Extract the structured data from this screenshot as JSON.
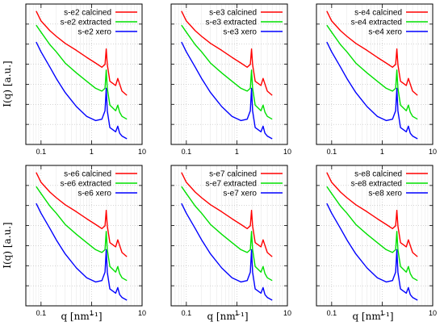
{
  "figure": {
    "y_axis_label": "I(q)  [a.u.]",
    "x_axis_label": "q  [nm⁻¹]"
  },
  "chart_data": [
    {
      "type": "line",
      "xlabel": "q  [nm⁻¹]",
      "ylabel": "I(q)  [a.u.]",
      "x_scale": "log",
      "y_scale": "log",
      "xlim": [
        0.05,
        10
      ],
      "ylim": [
        0,
        100
      ],
      "x_ticks": [
        "0.1",
        "1",
        "10"
      ],
      "y_tick_labels": [],
      "grid": true,
      "legend_position": "top-right",
      "series": [
        {
          "name": "s-e2 calcined",
          "color": "#ff0000",
          "x": [
            0.08,
            0.1,
            0.15,
            0.2,
            0.3,
            0.5,
            0.8,
            1.2,
            1.6,
            1.85,
            1.95,
            2.05,
            2.3,
            3.0,
            3.3,
            3.6,
            4.0,
            5.0
          ],
          "y": [
            95,
            88,
            81,
            77,
            72,
            67,
            62,
            58,
            55,
            57,
            68,
            57,
            45,
            42,
            47,
            43,
            38,
            35
          ]
        },
        {
          "name": "s-e2 extracted",
          "color": "#00e000",
          "x": [
            0.08,
            0.1,
            0.15,
            0.2,
            0.3,
            0.5,
            0.8,
            1.2,
            1.6,
            1.85,
            1.95,
            2.05,
            2.3,
            3.0,
            3.3,
            3.6,
            4.0,
            5.0
          ],
          "y": [
            85,
            80,
            71,
            66,
            58,
            51,
            45,
            40,
            38,
            40,
            53,
            40,
            28,
            24,
            28,
            23,
            20,
            18
          ]
        },
        {
          "name": "s-e2 xero",
          "color": "#0000ff",
          "x": [
            0.08,
            0.1,
            0.15,
            0.2,
            0.3,
            0.5,
            0.8,
            1.2,
            1.6,
            1.85,
            1.95,
            2.05,
            2.3,
            3.0,
            3.3,
            3.6,
            4.0,
            5.0
          ],
          "y": [
            73,
            66,
            55,
            47,
            37,
            27,
            20,
            17,
            18,
            24,
            40,
            24,
            12,
            9,
            13,
            8,
            6,
            4
          ]
        }
      ]
    },
    {
      "type": "line",
      "xlabel": "q  [nm⁻¹]",
      "ylabel": "I(q)  [a.u.]",
      "x_scale": "log",
      "y_scale": "log",
      "xlim": [
        0.05,
        10
      ],
      "ylim": [
        0,
        100
      ],
      "x_ticks": [
        "0.1",
        "1",
        "10"
      ],
      "y_tick_labels": [],
      "grid": true,
      "legend_position": "top-right",
      "series": [
        {
          "name": "s-e3 calcined",
          "color": "#ff0000",
          "x": [
            0.08,
            0.1,
            0.15,
            0.2,
            0.3,
            0.5,
            0.8,
            1.2,
            1.6,
            1.85,
            1.95,
            2.05,
            2.3,
            3.0,
            3.3,
            3.6,
            4.0,
            5.0
          ],
          "y": [
            95,
            88,
            81,
            77,
            72,
            67,
            62,
            58,
            55,
            57,
            68,
            57,
            45,
            42,
            47,
            43,
            38,
            35
          ]
        },
        {
          "name": "s-e3 extracted",
          "color": "#00e000",
          "x": [
            0.08,
            0.1,
            0.15,
            0.2,
            0.3,
            0.5,
            0.8,
            1.2,
            1.6,
            1.85,
            1.95,
            2.05,
            2.3,
            3.0,
            3.3,
            3.6,
            4.0,
            5.0
          ],
          "y": [
            85,
            80,
            71,
            66,
            58,
            51,
            45,
            40,
            38,
            40,
            53,
            40,
            28,
            24,
            28,
            23,
            20,
            18
          ]
        },
        {
          "name": "s-e3 xero",
          "color": "#0000ff",
          "x": [
            0.08,
            0.1,
            0.15,
            0.2,
            0.3,
            0.5,
            0.8,
            1.2,
            1.6,
            1.85,
            1.95,
            2.05,
            2.3,
            3.0,
            3.3,
            3.6,
            4.0,
            5.0
          ],
          "y": [
            73,
            66,
            55,
            47,
            37,
            27,
            20,
            17,
            18,
            24,
            40,
            24,
            12,
            9,
            13,
            8,
            6,
            4
          ]
        }
      ]
    },
    {
      "type": "line",
      "xlabel": "q  [nm⁻¹]",
      "ylabel": "I(q)  [a.u.]",
      "x_scale": "log",
      "y_scale": "log",
      "xlim": [
        0.05,
        10
      ],
      "ylim": [
        0,
        100
      ],
      "x_ticks": [
        "0.1",
        "1",
        "10"
      ],
      "y_tick_labels": [],
      "grid": true,
      "legend_position": "top-right",
      "series": [
        {
          "name": "s-e4 calcined",
          "color": "#ff0000",
          "x": [
            0.08,
            0.1,
            0.15,
            0.2,
            0.3,
            0.5,
            0.8,
            1.2,
            1.6,
            1.85,
            1.95,
            2.05,
            2.3,
            3.0,
            3.3,
            3.6,
            4.0,
            5.0
          ],
          "y": [
            95,
            88,
            81,
            77,
            72,
            67,
            62,
            58,
            55,
            57,
            68,
            57,
            45,
            42,
            47,
            43,
            38,
            35
          ]
        },
        {
          "name": "s-e4 extracted",
          "color": "#00e000",
          "x": [
            0.08,
            0.1,
            0.15,
            0.2,
            0.3,
            0.5,
            0.8,
            1.2,
            1.6,
            1.85,
            1.95,
            2.05,
            2.3,
            3.0,
            3.3,
            3.6,
            4.0,
            5.0
          ],
          "y": [
            85,
            80,
            71,
            66,
            58,
            51,
            45,
            40,
            38,
            40,
            53,
            40,
            28,
            24,
            28,
            23,
            20,
            18
          ]
        },
        {
          "name": "s-e4 xero",
          "color": "#0000ff",
          "x": [
            0.08,
            0.1,
            0.15,
            0.2,
            0.3,
            0.5,
            0.8,
            1.2,
            1.6,
            1.85,
            1.95,
            2.05,
            2.3,
            3.0,
            3.3,
            3.6,
            4.0,
            5.0
          ],
          "y": [
            73,
            66,
            55,
            47,
            37,
            27,
            20,
            17,
            18,
            24,
            40,
            24,
            12,
            9,
            13,
            8,
            6,
            4
          ]
        }
      ]
    },
    {
      "type": "line",
      "xlabel": "q  [nm⁻¹]",
      "ylabel": "I(q)  [a.u.]",
      "x_scale": "log",
      "y_scale": "log",
      "xlim": [
        0.05,
        10
      ],
      "ylim": [
        0,
        100
      ],
      "x_ticks": [
        "0.1",
        "1",
        "10"
      ],
      "y_tick_labels": [],
      "grid": true,
      "legend_position": "top-right",
      "series": [
        {
          "name": "s-e6 calcined",
          "color": "#ff0000",
          "x": [
            0.08,
            0.1,
            0.15,
            0.2,
            0.3,
            0.5,
            0.8,
            1.2,
            1.6,
            1.85,
            1.95,
            2.05,
            2.3,
            3.0,
            3.3,
            3.6,
            4.0,
            5.0
          ],
          "y": [
            95,
            88,
            81,
            77,
            72,
            67,
            62,
            58,
            55,
            57,
            68,
            57,
            45,
            42,
            47,
            43,
            38,
            35
          ]
        },
        {
          "name": "s-e6 extracted",
          "color": "#00e000",
          "x": [
            0.08,
            0.1,
            0.15,
            0.2,
            0.3,
            0.5,
            0.8,
            1.2,
            1.6,
            1.85,
            1.95,
            2.05,
            2.3,
            3.0,
            3.3,
            3.6,
            4.0,
            5.0
          ],
          "y": [
            85,
            80,
            71,
            66,
            58,
            51,
            45,
            40,
            38,
            40,
            53,
            40,
            28,
            24,
            28,
            23,
            20,
            18
          ]
        },
        {
          "name": "s-e6 xero",
          "color": "#0000ff",
          "x": [
            0.08,
            0.1,
            0.15,
            0.2,
            0.3,
            0.5,
            0.8,
            1.2,
            1.6,
            1.85,
            1.95,
            2.05,
            2.3,
            3.0,
            3.3,
            3.6,
            4.0,
            5.0
          ],
          "y": [
            73,
            66,
            55,
            47,
            37,
            27,
            20,
            17,
            18,
            24,
            40,
            24,
            12,
            9,
            13,
            8,
            6,
            4
          ]
        }
      ]
    },
    {
      "type": "line",
      "xlabel": "q  [nm⁻¹]",
      "ylabel": "I(q)  [a.u.]",
      "x_scale": "log",
      "y_scale": "log",
      "xlim": [
        0.05,
        10
      ],
      "ylim": [
        0,
        100
      ],
      "x_ticks": [
        "0.1",
        "1",
        "10"
      ],
      "y_tick_labels": [],
      "grid": true,
      "legend_position": "top-right",
      "series": [
        {
          "name": "s-e7 calcined",
          "color": "#ff0000",
          "x": [
            0.08,
            0.1,
            0.15,
            0.2,
            0.3,
            0.5,
            0.8,
            1.2,
            1.6,
            1.85,
            1.95,
            2.05,
            2.3,
            3.0,
            3.3,
            3.6,
            4.0,
            5.0
          ],
          "y": [
            95,
            88,
            81,
            77,
            72,
            67,
            62,
            58,
            55,
            57,
            68,
            57,
            45,
            42,
            47,
            43,
            38,
            35
          ]
        },
        {
          "name": "s-e7 extracted",
          "color": "#00e000",
          "x": [
            0.08,
            0.1,
            0.15,
            0.2,
            0.3,
            0.5,
            0.8,
            1.2,
            1.6,
            1.85,
            1.95,
            2.05,
            2.3,
            3.0,
            3.3,
            3.6,
            4.0,
            5.0
          ],
          "y": [
            85,
            80,
            71,
            66,
            58,
            51,
            45,
            40,
            38,
            40,
            53,
            40,
            28,
            24,
            28,
            23,
            20,
            18
          ]
        },
        {
          "name": "s-e7 xero",
          "color": "#0000ff",
          "x": [
            0.08,
            0.1,
            0.15,
            0.2,
            0.3,
            0.5,
            0.8,
            1.2,
            1.6,
            1.85,
            1.95,
            2.05,
            2.3,
            3.0,
            3.3,
            3.6,
            4.0,
            5.0
          ],
          "y": [
            73,
            66,
            55,
            47,
            37,
            27,
            20,
            17,
            18,
            24,
            40,
            24,
            12,
            9,
            13,
            8,
            6,
            4
          ]
        }
      ]
    },
    {
      "type": "line",
      "xlabel": "q  [nm⁻¹]",
      "ylabel": "I(q)  [a.u.]",
      "x_scale": "log",
      "y_scale": "log",
      "xlim": [
        0.05,
        10
      ],
      "ylim": [
        0,
        100
      ],
      "x_ticks": [
        "0.1",
        "1",
        "10"
      ],
      "y_tick_labels": [],
      "grid": true,
      "legend_position": "top-right",
      "series": [
        {
          "name": "s-e8 calcined",
          "color": "#ff0000",
          "x": [
            0.08,
            0.1,
            0.15,
            0.2,
            0.3,
            0.5,
            0.8,
            1.2,
            1.6,
            1.85,
            1.95,
            2.05,
            2.3,
            3.0,
            3.3,
            3.6,
            4.0,
            5.0
          ],
          "y": [
            95,
            88,
            81,
            77,
            72,
            67,
            62,
            58,
            55,
            57,
            68,
            57,
            45,
            42,
            47,
            43,
            38,
            35
          ]
        },
        {
          "name": "s-e8 extracted",
          "color": "#00e000",
          "x": [
            0.08,
            0.1,
            0.15,
            0.2,
            0.3,
            0.5,
            0.8,
            1.2,
            1.6,
            1.85,
            1.95,
            2.05,
            2.3,
            3.0,
            3.3,
            3.6,
            4.0,
            5.0
          ],
          "y": [
            85,
            80,
            71,
            66,
            58,
            51,
            45,
            40,
            38,
            40,
            53,
            40,
            28,
            24,
            28,
            23,
            20,
            18
          ]
        },
        {
          "name": "s-e8 xero",
          "color": "#0000ff",
          "x": [
            0.08,
            0.1,
            0.15,
            0.2,
            0.3,
            0.5,
            0.8,
            1.2,
            1.6,
            1.85,
            1.95,
            2.05,
            2.3,
            3.0,
            3.3,
            3.6,
            4.0,
            5.0
          ],
          "y": [
            73,
            66,
            55,
            47,
            37,
            27,
            20,
            17,
            18,
            24,
            40,
            24,
            12,
            9,
            13,
            8,
            6,
            4
          ]
        }
      ]
    }
  ]
}
